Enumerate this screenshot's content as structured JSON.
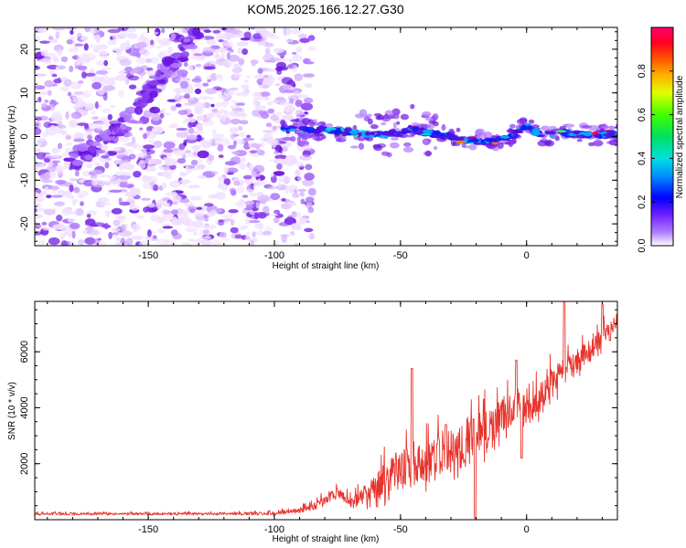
{
  "title": "KOM5.2025.166.12.27.G30",
  "colors": {
    "snr_line": "#e8332c",
    "background": "#ffffff",
    "scatter_palette": [
      "#f0e0ff",
      "#d8b4ff",
      "#b27bff",
      "#8a3df0",
      "#6a14e0"
    ],
    "ridge_palette": [
      "#5010e0",
      "#0020ff",
      "#00b0ff",
      "#00e0e0",
      "#40ff40",
      "#ffff00",
      "#ff8000",
      "#ff0000"
    ]
  },
  "chart_data": [
    {
      "type": "heatmap",
      "name": "spectrogram",
      "xlabel": "Height of straight line (km)",
      "ylabel": "Frequency (Hz)",
      "xlim": [
        -195,
        36
      ],
      "ylim": [
        -25,
        25
      ],
      "xticks": [
        "-150",
        "-100",
        "-50",
        "0"
      ],
      "yticks": [
        "-20",
        "-10",
        "0",
        "10",
        "20"
      ],
      "colorbar": {
        "label": "Normalized spectral amplitude",
        "range": [
          0,
          1
        ],
        "ticks": [
          "0.0",
          "0.2",
          "0.4",
          "0.6",
          "0.8"
        ]
      },
      "noise_region_x": [
        -195,
        -85
      ],
      "diagonal_track": [
        [
          -180,
          -5
        ],
        [
          -170,
          -2
        ],
        [
          -160,
          3
        ],
        [
          -150,
          10
        ],
        [
          -140,
          17
        ],
        [
          -130,
          24
        ]
      ],
      "ridge_track": [
        [
          -97,
          1.5
        ],
        [
          -85,
          1.6
        ],
        [
          -75,
          1.2
        ],
        [
          -66,
          0.8
        ],
        [
          -60,
          0.5
        ],
        [
          -55,
          0.5
        ],
        [
          -50,
          0.8
        ],
        [
          -46,
          2.0
        ],
        [
          -42,
          1.2
        ],
        [
          -35,
          0.5
        ],
        [
          -28,
          -0.5
        ],
        [
          -22,
          -1.0
        ],
        [
          -15,
          -1.2
        ],
        [
          -10,
          -0.5
        ],
        [
          -5,
          0.3
        ],
        [
          0,
          2.5
        ],
        [
          5,
          0.5
        ],
        [
          15,
          0.8
        ],
        [
          25,
          0.3
        ],
        [
          35,
          0.6
        ]
      ]
    },
    {
      "type": "line",
      "name": "snr",
      "xlabel": "Height of straight line (km)",
      "ylabel": "SNR (10 * v/v)",
      "xlim": [
        -195,
        36
      ],
      "ylim": [
        0,
        7800
      ],
      "xticks": [
        "-150",
        "-100",
        "-50",
        "0"
      ],
      "yticks": [
        "2000",
        "4000",
        "6000"
      ],
      "series": [
        {
          "color": "#e8332c",
          "envelope_x": [
            -195,
            -120,
            -100,
            -95,
            -90,
            -85,
            -80,
            -75,
            -70,
            -65,
            -60,
            -55,
            -50,
            -45,
            -40,
            -35,
            -30,
            -25,
            -20,
            -15,
            -10,
            -5,
            0,
            5,
            10,
            15,
            20,
            25,
            30,
            35
          ],
          "envelope_base": [
            200,
            200,
            200,
            250,
            300,
            400,
            700,
            900,
            600,
            700,
            1000,
            1300,
            1600,
            1700,
            1800,
            2000,
            2200,
            2400,
            2700,
            3100,
            3500,
            3900,
            3600,
            4200,
            4700,
            5100,
            5500,
            5900,
            6400,
            7000
          ],
          "envelope_amp": [
            80,
            80,
            120,
            150,
            200,
            250,
            300,
            350,
            400,
            700,
            1000,
            1300,
            1500,
            1500,
            1500,
            1600,
            1600,
            1600,
            1600,
            1400,
            1300,
            1200,
            1200,
            1100,
            1100,
            1000,
            900,
            800,
            700,
            600
          ],
          "peaks": [
            [
              -45.5,
              5400
            ],
            [
              -75,
              900
            ],
            [
              -32,
              3400
            ],
            [
              -21,
              3600
            ],
            [
              -4,
              5700
            ],
            [
              15,
              7800
            ],
            [
              30,
              7700
            ]
          ],
          "dips": [
            [
              -20.5,
              50
            ],
            [
              -2,
              2200
            ],
            [
              33,
              6400
            ]
          ]
        }
      ]
    }
  ]
}
